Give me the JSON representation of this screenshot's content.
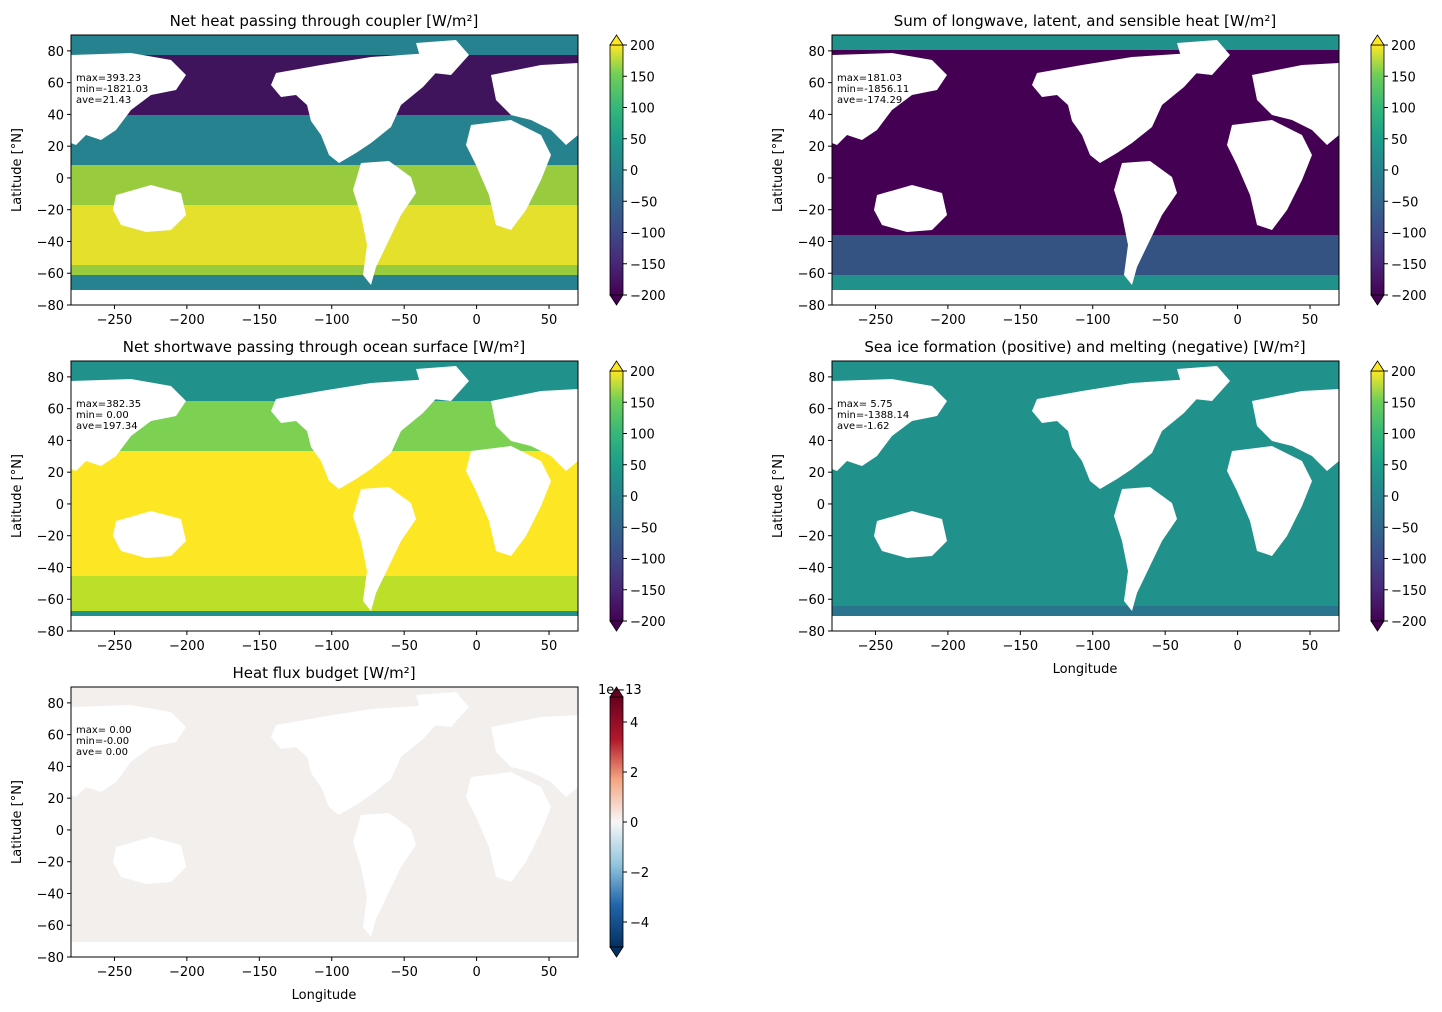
{
  "figure": {
    "panels": [
      {
        "title": "Net heat passing through coupler [W/m²]",
        "ylabel": "Latitude [°N]",
        "xlabel": "",
        "stats": [
          "max=393.23",
          "min=-1821.03",
          "ave=21.43"
        ],
        "colorbar": {
          "cmap": "viridis",
          "ticks": [
            "200",
            "150",
            "100",
            "50",
            "0",
            "−50",
            "−100",
            "−150",
            "−200"
          ],
          "exponent": ""
        }
      },
      {
        "title": "Sum of longwave, latent, and sensible heat [W/m²]",
        "ylabel": "Latitude [°N]",
        "xlabel": "",
        "stats": [
          "max=181.03",
          "min=-1856.11",
          "ave=-174.29"
        ],
        "colorbar": {
          "cmap": "viridis",
          "ticks": [
            "200",
            "150",
            "100",
            "50",
            "0",
            "−50",
            "−100",
            "−150",
            "−200"
          ],
          "exponent": ""
        }
      },
      {
        "title": "Net shortwave passing through ocean surface [W/m²]",
        "ylabel": "Latitude [°N]",
        "xlabel": "",
        "stats": [
          "max=382.35",
          "min= 0.00",
          "ave=197.34"
        ],
        "colorbar": {
          "cmap": "viridis",
          "ticks": [
            "200",
            "150",
            "100",
            "50",
            "0",
            "−50",
            "−100",
            "−150",
            "−200"
          ],
          "exponent": ""
        }
      },
      {
        "title": "Sea ice formation (positive) and melting (negative) [W/m²]",
        "ylabel": "Latitude [°N]",
        "xlabel": "Longitude",
        "stats": [
          "max= 5.75",
          "min=-1388.14",
          "ave=-1.62"
        ],
        "colorbar": {
          "cmap": "viridis",
          "ticks": [
            "200",
            "150",
            "100",
            "50",
            "0",
            "−50",
            "−100",
            "−150",
            "−200"
          ],
          "exponent": ""
        }
      },
      {
        "title": "Heat flux budget [W/m²]",
        "ylabel": "Latitude [°N]",
        "xlabel": "Longitude",
        "stats": [
          "max= 0.00",
          "min=-0.00",
          "ave= 0.00"
        ],
        "colorbar": {
          "cmap": "RdBu_r",
          "ticks": [
            "4",
            "2",
            "0",
            "−2",
            "−4"
          ],
          "exponent": "1e−13"
        }
      }
    ],
    "x_tick_labels": [
      "−250",
      "−200",
      "−150",
      "−100",
      "−50",
      "0",
      "50"
    ],
    "y_tick_labels": [
      "80",
      "60",
      "40",
      "20",
      "0",
      "−20",
      "−40",
      "−60",
      "−80"
    ]
  },
  "chart_data": [
    {
      "type": "heatmap",
      "title": "Net heat passing through coupler [W/m²]",
      "xlabel": "",
      "ylabel": "Latitude [°N]",
      "xlim": [
        -280,
        70
      ],
      "ylim": [
        -80,
        90
      ],
      "xticks": [
        -250,
        -200,
        -150,
        -100,
        -50,
        0,
        50
      ],
      "yticks": [
        -80,
        -60,
        -40,
        -20,
        0,
        20,
        40,
        60,
        80
      ],
      "colorbar": {
        "min": -200,
        "max": 200,
        "ticks": [
          -200,
          -150,
          -100,
          -50,
          0,
          50,
          100,
          150,
          200
        ],
        "extend": "both",
        "cmap": "viridis"
      },
      "annotations": {
        "max": 393.23,
        "min": -1821.03,
        "ave": 21.43
      },
      "grid": false
    },
    {
      "type": "heatmap",
      "title": "Sum of longwave, latent, and sensible heat [W/m²]",
      "xlabel": "",
      "ylabel": "Latitude [°N]",
      "xlim": [
        -280,
        70
      ],
      "ylim": [
        -80,
        90
      ],
      "xticks": [
        -250,
        -200,
        -150,
        -100,
        -50,
        0,
        50
      ],
      "yticks": [
        -80,
        -60,
        -40,
        -20,
        0,
        20,
        40,
        60,
        80
      ],
      "colorbar": {
        "min": -200,
        "max": 200,
        "ticks": [
          -200,
          -150,
          -100,
          -50,
          0,
          50,
          100,
          150,
          200
        ],
        "extend": "both",
        "cmap": "viridis"
      },
      "annotations": {
        "max": 181.03,
        "min": -1856.11,
        "ave": -174.29
      },
      "grid": false
    },
    {
      "type": "heatmap",
      "title": "Net shortwave passing through ocean surface [W/m²]",
      "xlabel": "",
      "ylabel": "Latitude [°N]",
      "xlim": [
        -280,
        70
      ],
      "ylim": [
        -80,
        90
      ],
      "xticks": [
        -250,
        -200,
        -150,
        -100,
        -50,
        0,
        50
      ],
      "yticks": [
        -80,
        -60,
        -40,
        -20,
        0,
        20,
        40,
        60,
        80
      ],
      "colorbar": {
        "min": -200,
        "max": 200,
        "ticks": [
          -200,
          -150,
          -100,
          -50,
          0,
          50,
          100,
          150,
          200
        ],
        "extend": "both",
        "cmap": "viridis"
      },
      "annotations": {
        "max": 382.35,
        "min": 0.0,
        "ave": 197.34
      },
      "grid": false
    },
    {
      "type": "heatmap",
      "title": "Sea ice formation (positive) and melting (negative) [W/m²]",
      "xlabel": "Longitude",
      "ylabel": "Latitude [°N]",
      "xlim": [
        -280,
        70
      ],
      "ylim": [
        -80,
        90
      ],
      "xticks": [
        -250,
        -200,
        -150,
        -100,
        -50,
        0,
        50
      ],
      "yticks": [
        -80,
        -60,
        -40,
        -20,
        0,
        20,
        40,
        60,
        80
      ],
      "colorbar": {
        "min": -200,
        "max": 200,
        "ticks": [
          -200,
          -150,
          -100,
          -50,
          0,
          50,
          100,
          150,
          200
        ],
        "extend": "both",
        "cmap": "viridis"
      },
      "annotations": {
        "max": 5.75,
        "min": -1388.14,
        "ave": -1.62
      },
      "grid": false
    },
    {
      "type": "heatmap",
      "title": "Heat flux budget [W/m²]",
      "xlabel": "Longitude",
      "ylabel": "Latitude [°N]",
      "xlim": [
        -280,
        70
      ],
      "ylim": [
        -80,
        90
      ],
      "xticks": [
        -250,
        -200,
        -150,
        -100,
        -50,
        0,
        50
      ],
      "yticks": [
        -80,
        -60,
        -40,
        -20,
        0,
        20,
        40,
        60,
        80
      ],
      "colorbar": {
        "min": -5e-13,
        "max": 5e-13,
        "ticks": [
          -4e-13,
          -2e-13,
          0,
          2e-13,
          4e-13
        ],
        "extend": "both",
        "cmap": "RdBu_r",
        "offset_text": "1e−13"
      },
      "annotations": {
        "max": 0.0,
        "min": -0.0,
        "ave": 0.0
      },
      "grid": false
    }
  ],
  "colors": {
    "viridis_low": "#440154",
    "viridis_mid": "#21918c",
    "viridis_high": "#fde725",
    "rdbu_low": "#053061",
    "rdbu_mid": "#f7f7f7",
    "rdbu_high": "#67001f",
    "land": "#ffffff"
  }
}
